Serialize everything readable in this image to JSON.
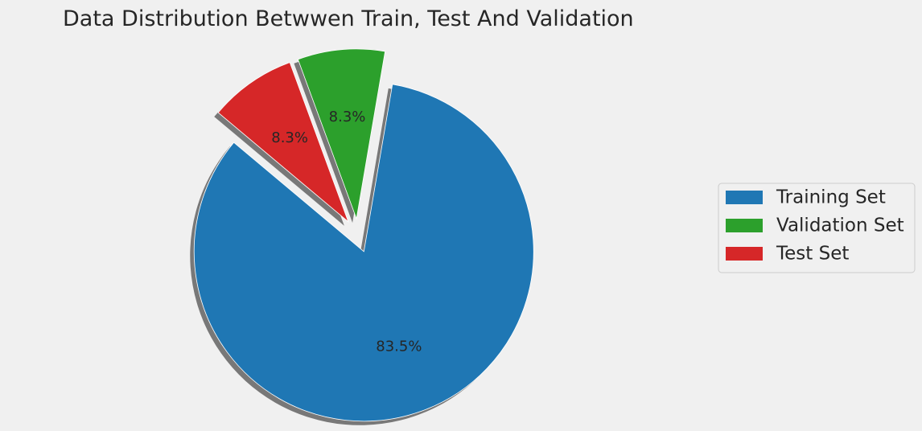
{
  "chart_data": {
    "type": "pie",
    "title": "Data Distribution Betwwen Train, Test And Validation",
    "slices": [
      {
        "label": "Training Set",
        "value": 83.5,
        "pct_label": "83.5%",
        "color": "#1f77b4"
      },
      {
        "label": "Validation Set",
        "value": 8.3,
        "pct_label": "8.3%",
        "color": "#2ca02c"
      },
      {
        "label": "Test Set",
        "value": 8.3,
        "pct_label": "8.3%",
        "color": "#d62728"
      }
    ],
    "legend_placement": "center-right",
    "shadow": true
  }
}
